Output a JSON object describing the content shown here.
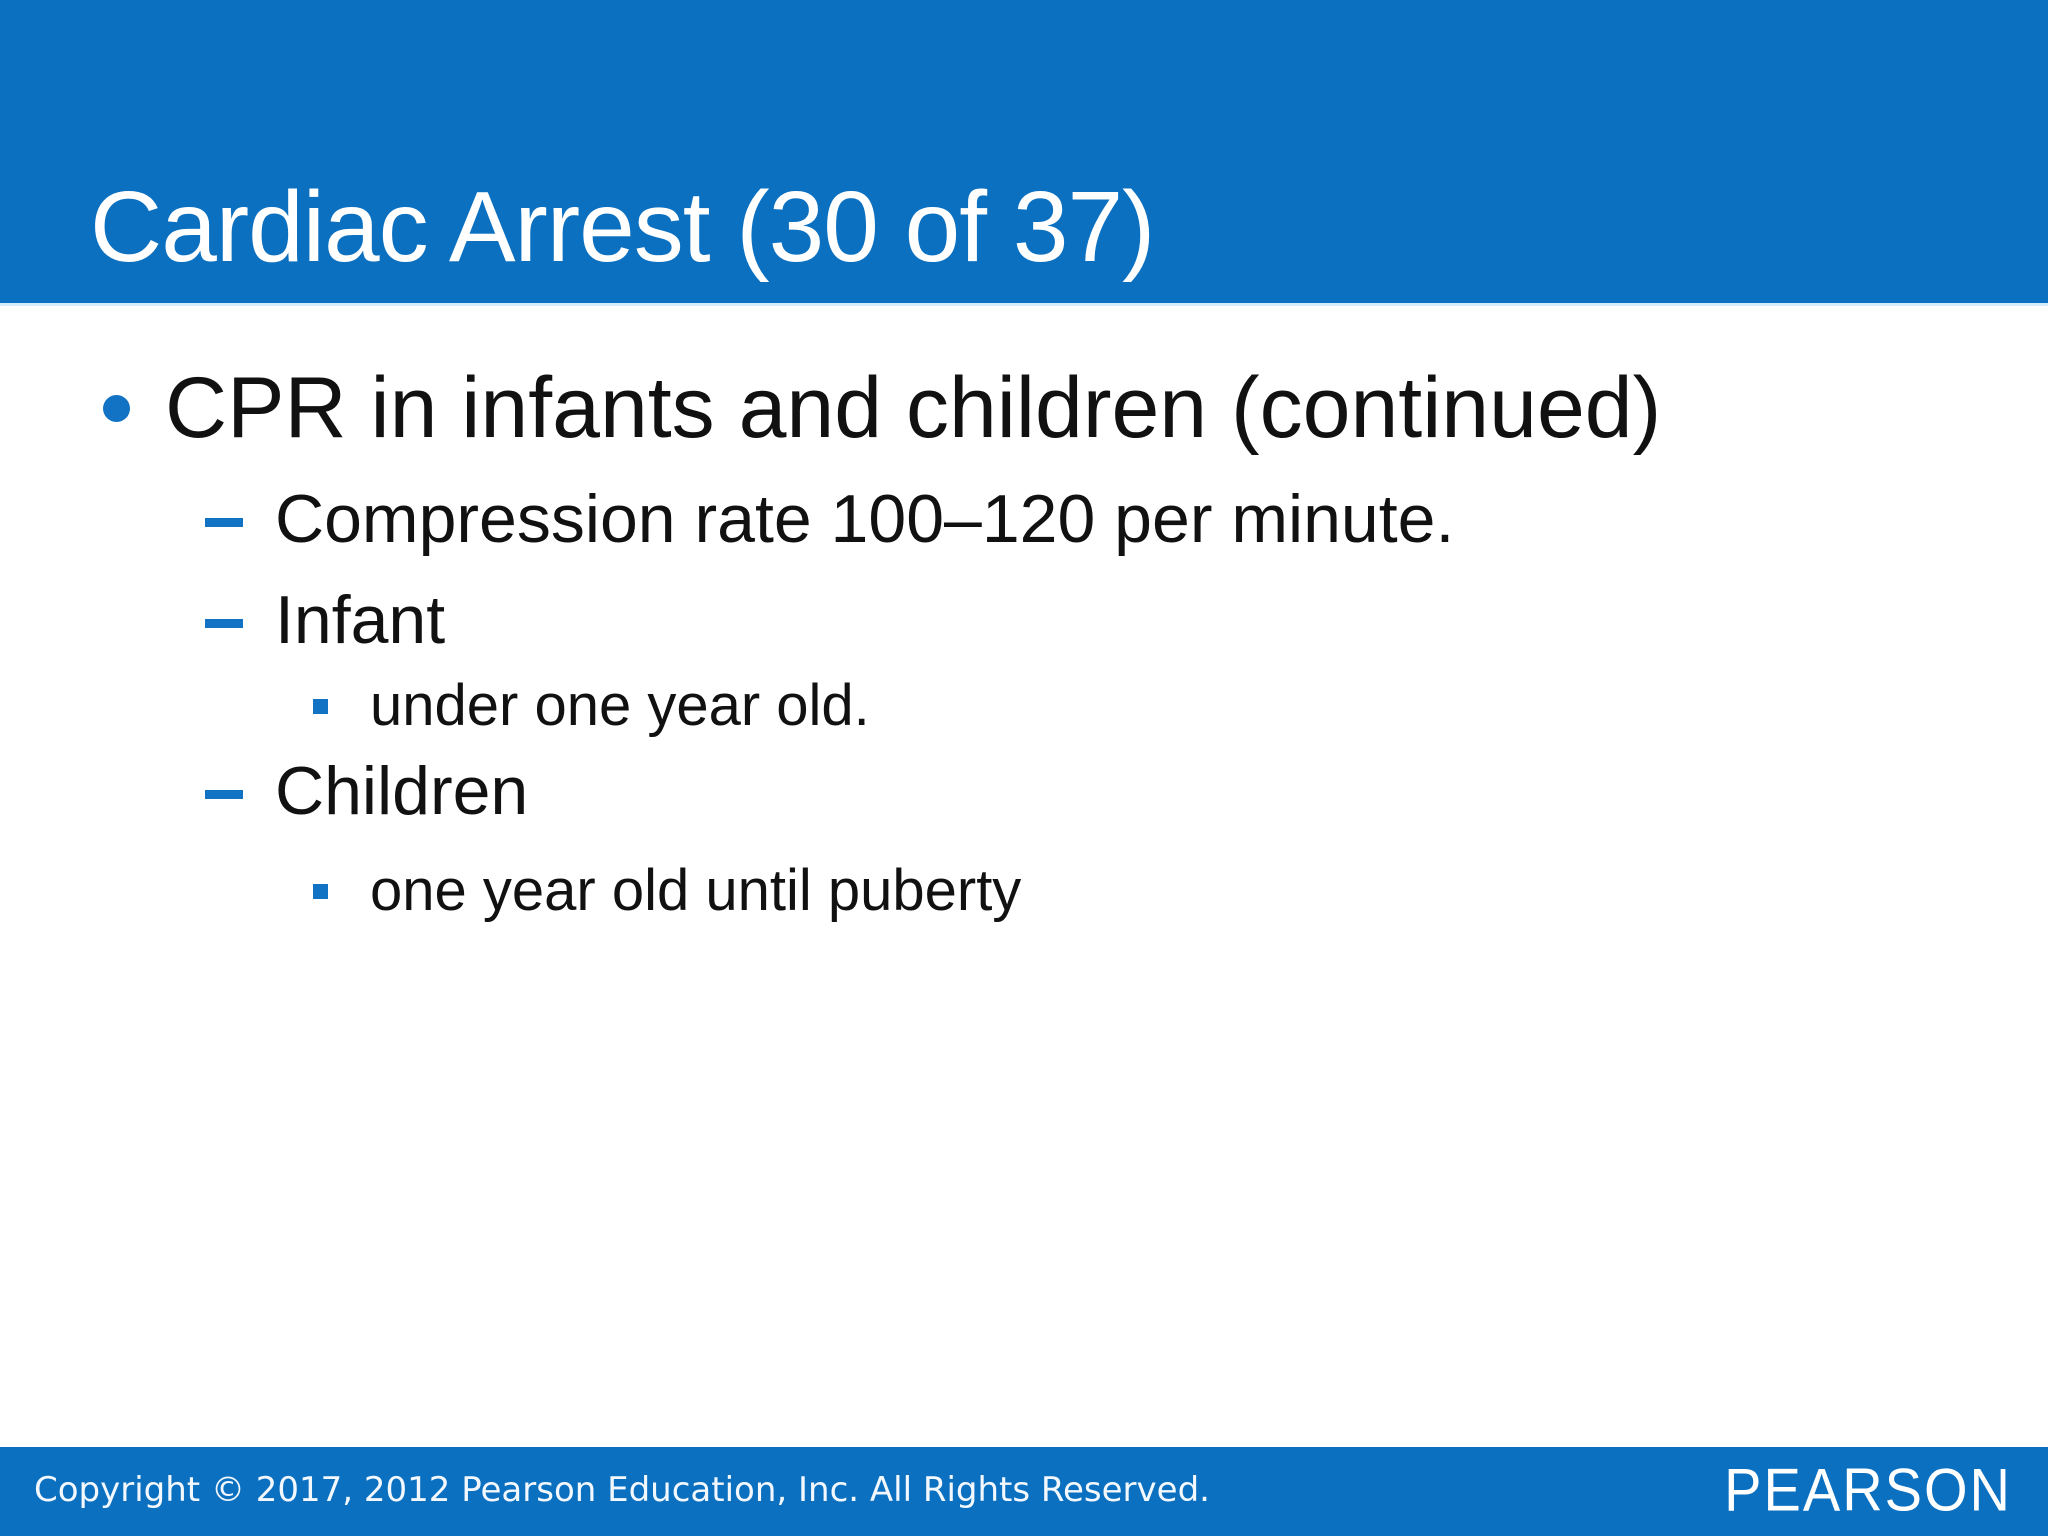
{
  "slide": {
    "title": "Cardiac Arrest (30 of 37)",
    "bullets": [
      {
        "level": 1,
        "marker": "dot",
        "text": "CPR in infants and children (continued)"
      },
      {
        "level": 2,
        "marker": "dash",
        "text": "Compression rate 100–120 per minute."
      },
      {
        "level": 2,
        "marker": "dash",
        "text": "Infant"
      },
      {
        "level": 3,
        "marker": "square",
        "text": "under one year old."
      },
      {
        "level": 2,
        "marker": "dash",
        "text": "Children"
      },
      {
        "level": 3,
        "marker": "square",
        "text": "one year old until puberty"
      }
    ],
    "footer": {
      "copyright": "Copyright © 2017, 2012 Pearson Education, Inc. All Rights Reserved.",
      "logo": "PEARSON"
    },
    "colors": {
      "bar_blue": "#0b70c0",
      "bullet_blue": "#1273c4",
      "body_text": "#111111",
      "title_text": "#ffffff"
    }
  }
}
